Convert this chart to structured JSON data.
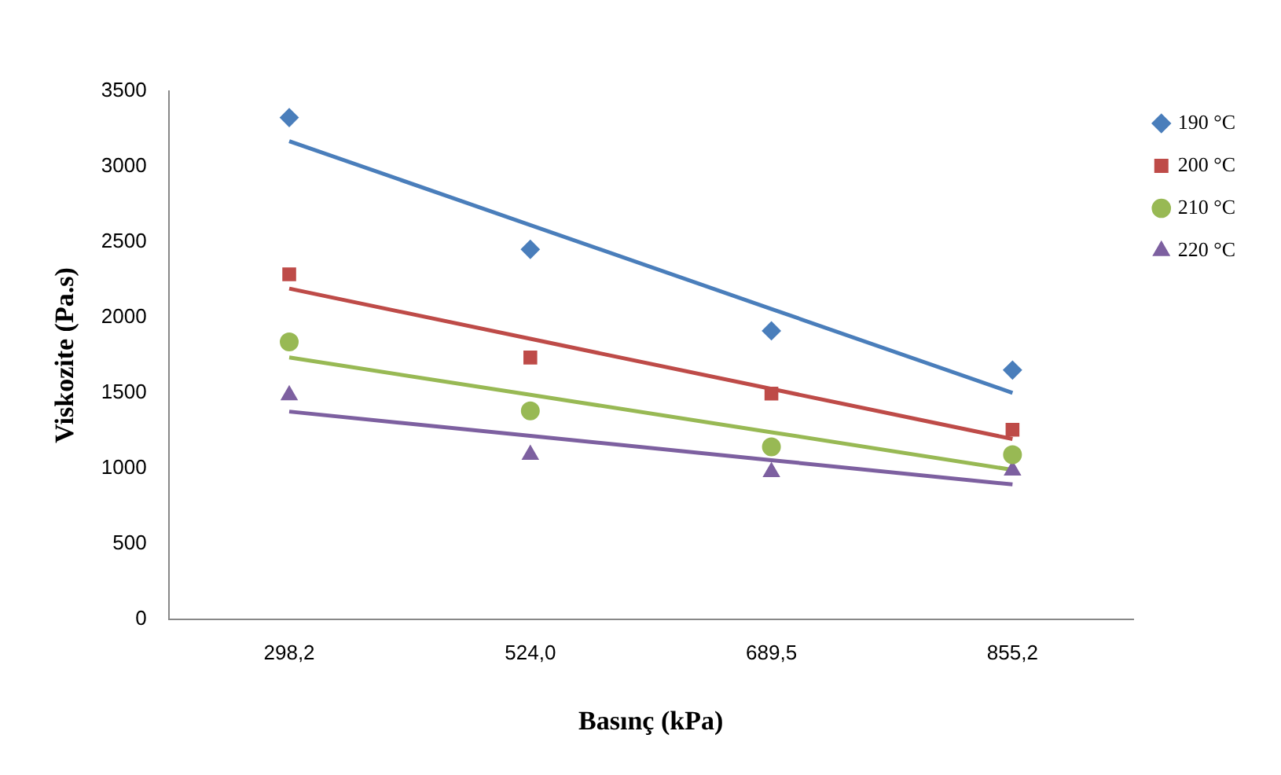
{
  "chart_data": {
    "type": "scatter",
    "xlabel": "Basınç (kPa)",
    "ylabel": "Viskozite (Pa.s)",
    "categories": [
      "298,2",
      "524,0",
      "689,5",
      "855,2"
    ],
    "ylim": [
      0,
      3500
    ],
    "yticks": [
      0,
      500,
      1000,
      1500,
      2000,
      2500,
      3000,
      3500
    ],
    "grid": false,
    "legend": "right",
    "series": [
      {
        "name": "190 °C",
        "color": "#4a7ebb",
        "marker": "diamond",
        "values": [
          3325,
          2452,
          1912,
          1652
        ]
      },
      {
        "name": "200 °C",
        "color": "#be4b48",
        "marker": "square",
        "values": [
          2286,
          1735,
          1496,
          1257
        ]
      },
      {
        "name": "210 °C",
        "color": "#98b954",
        "marker": "circle",
        "values": [
          1839,
          1382,
          1143,
          1091
        ]
      },
      {
        "name": "220 °C",
        "color": "#7d60a0",
        "marker": "triangle",
        "values": [
          1486,
          1091,
          977,
          987
        ]
      },
      {
        "type": "line",
        "color": "#4a7ebb",
        "values": [
          3169,
          2613,
          2057,
          1501
        ]
      },
      {
        "type": "line",
        "color": "#be4b48",
        "values": [
          2192,
          1859,
          1527,
          1195
        ]
      },
      {
        "type": "line",
        "color": "#98b954",
        "values": [
          1736,
          1488,
          1240,
          991
        ]
      },
      {
        "type": "line",
        "color": "#7d60a0",
        "values": [
          1377,
          1216,
          1055,
          894
        ]
      }
    ]
  }
}
